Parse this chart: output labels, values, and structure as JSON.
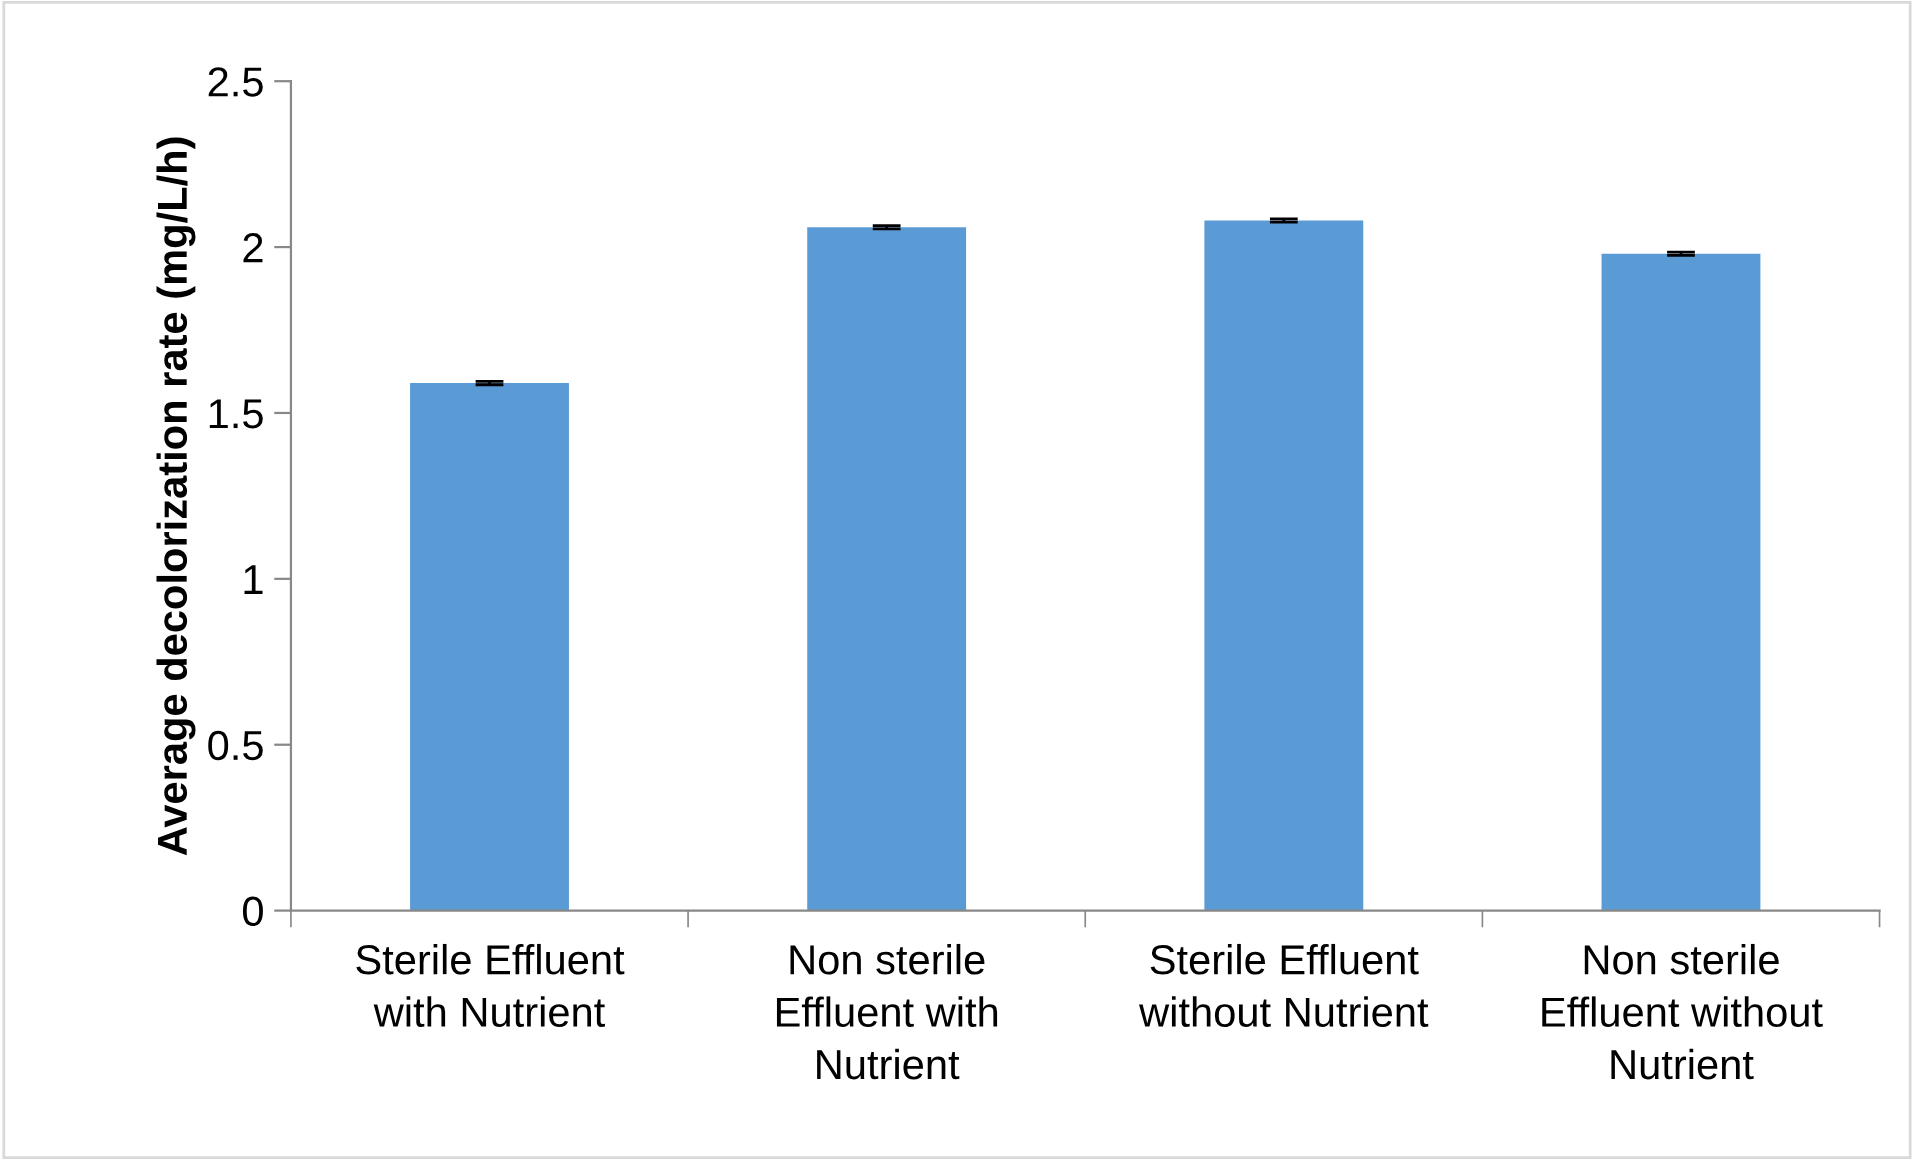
{
  "chart_data": {
    "type": "bar",
    "ylabel": "Average decolorization rate (mg/L/h)",
    "categories": [
      "Sterile Effluent\nwith Nutrient",
      "Non sterile\nEffluent with\nNutrient",
      "Sterile Effluent\nwithout Nutrient",
      "Non sterile\nEffluent without\nNutrient"
    ],
    "values": [
      1.59,
      2.06,
      2.08,
      1.98
    ],
    "errors": [
      0.005,
      0.005,
      0.005,
      0.005
    ],
    "color": "#5b9bd5",
    "ylim": [
      0,
      2.5
    ],
    "yticks": [
      0,
      0.5,
      1,
      1.5,
      2,
      2.5
    ],
    "grid": false
  }
}
